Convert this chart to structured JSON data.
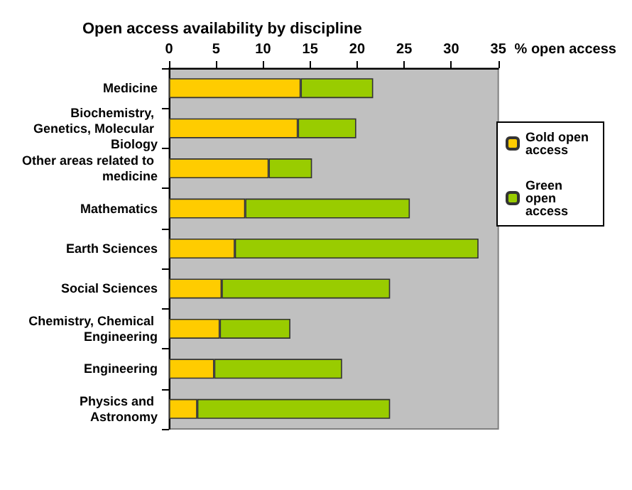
{
  "chart_data": {
    "type": "bar",
    "orientation": "horizontal",
    "stacked": true,
    "title": "Open access availability by discipline",
    "xlabel": "% open access",
    "categories": [
      "Medicine",
      "Biochemistry, Genetics, Molecular Biology",
      "Other areas related to medicine",
      "Mathematics",
      "Earth Sciences",
      "Social Sciences",
      "Chemistry, Chemical Engineering",
      "Engineering",
      "Physics and Astronomy"
    ],
    "series": [
      {
        "name": "Gold open access",
        "color": "#ffcc00",
        "values": [
          14.0,
          13.7,
          10.6,
          8.1,
          7.0,
          5.6,
          5.4,
          4.8,
          3.0
        ]
      },
      {
        "name": "Green open access",
        "color": "#99cc00",
        "values": [
          7.7,
          6.2,
          4.6,
          17.5,
          25.9,
          17.9,
          7.5,
          13.6,
          20.5
        ]
      }
    ],
    "xlim": [
      0,
      35
    ],
    "xticks": [
      0,
      5,
      10,
      15,
      20,
      25,
      30,
      35
    ],
    "grid": false,
    "legend": "right"
  }
}
